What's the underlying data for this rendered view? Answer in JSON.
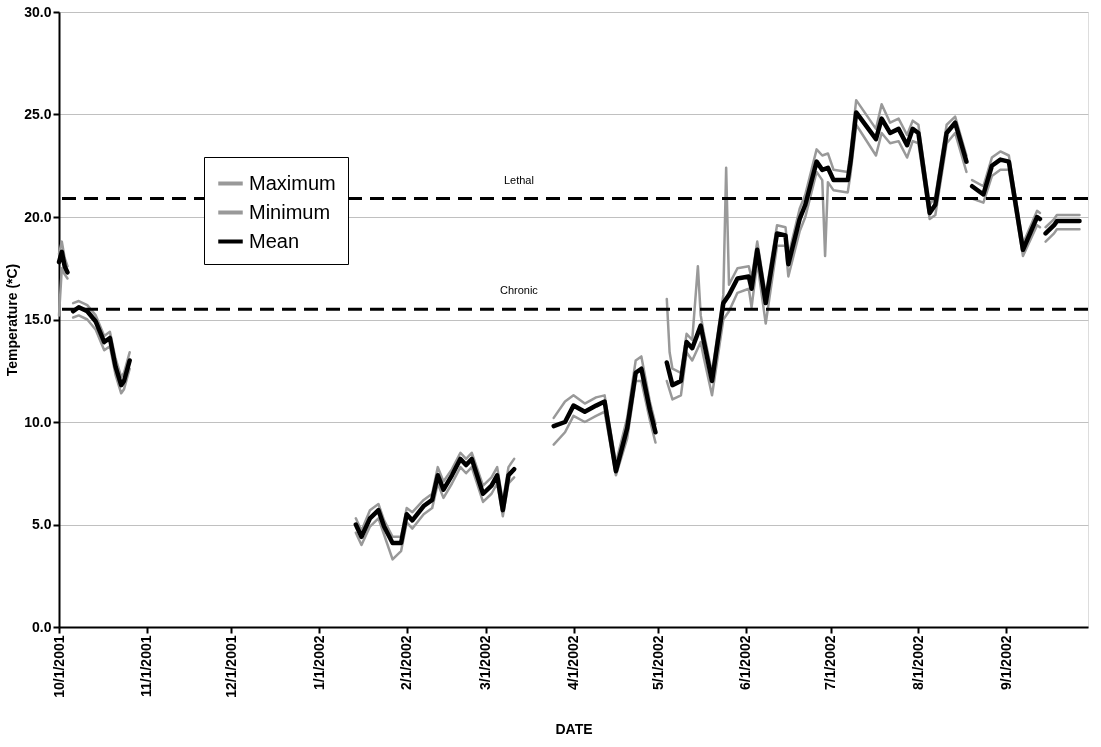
{
  "chart_data": {
    "type": "line",
    "xlabel": "DATE",
    "ylabel": "Temperature (*C)",
    "xlim": [
      "2001-10-01",
      "2002-09-30"
    ],
    "xticks": [
      {
        "value": "2001-10-01",
        "label": "10/1/2001"
      },
      {
        "value": "2001-11-01",
        "label": "11/1/2001"
      },
      {
        "value": "2001-12-01",
        "label": "12/1/2001"
      },
      {
        "value": "2002-01-01",
        "label": "1/1/2002"
      },
      {
        "value": "2002-02-01",
        "label": "2/1/2002"
      },
      {
        "value": "2002-03-01",
        "label": "3/1/2002"
      },
      {
        "value": "2002-04-01",
        "label": "4/1/2002"
      },
      {
        "value": "2002-05-01",
        "label": "5/1/2002"
      },
      {
        "value": "2002-06-01",
        "label": "6/1/2002"
      },
      {
        "value": "2002-07-01",
        "label": "7/1/2002"
      },
      {
        "value": "2002-08-01",
        "label": "8/1/2002"
      },
      {
        "value": "2002-09-01",
        "label": "9/1/2002"
      }
    ],
    "ylim": [
      0,
      30
    ],
    "yticks": [
      {
        "value": 0,
        "label": "0.0"
      },
      {
        "value": 5,
        "label": "5.0"
      },
      {
        "value": 10,
        "label": "10.0"
      },
      {
        "value": 15,
        "label": "15.0"
      },
      {
        "value": 20,
        "label": "20.0"
      },
      {
        "value": 25,
        "label": "25.0"
      },
      {
        "value": 30,
        "label": "30.0"
      }
    ],
    "grid": "y",
    "legend": "top left",
    "line_style": "solid",
    "marker": "none",
    "ref_lines": [
      {
        "axis": "y",
        "value": 20.9,
        "label": "Lethal",
        "color": "#000000",
        "line_style": "dashed"
      },
      {
        "axis": "y",
        "value": 15.5,
        "label": "Chronic",
        "color": "#000000",
        "line_style": "dashed"
      }
    ],
    "series": [
      {
        "name": "Maximum",
        "color": "#999999",
        "x": [
          "2001-10-01",
          "2001-10-02",
          "2001-10-03",
          "2001-10-04",
          "2001-10-05",
          "2001-10-06",
          "2001-10-08",
          "2001-10-11",
          "2001-10-14",
          "2001-10-17",
          "2001-10-19",
          "2001-10-21",
          "2001-10-23",
          "2001-10-24",
          "2001-10-26",
          "2001-11-15",
          "2002-01-14",
          "2002-01-16",
          "2002-01-19",
          "2002-01-22",
          "2002-01-24",
          "2002-01-27",
          "2002-01-30",
          "2002-02-01",
          "2002-02-03",
          "2002-02-07",
          "2002-02-10",
          "2002-02-12",
          "2002-02-14",
          "2002-02-17",
          "2002-02-20",
          "2002-02-22",
          "2002-02-24",
          "2002-02-28",
          "2002-03-03",
          "2002-03-05",
          "2002-03-07",
          "2002-03-09",
          "2002-03-11",
          "2002-03-18",
          "2002-03-25",
          "2002-03-29",
          "2002-04-01",
          "2002-04-05",
          "2002-04-09",
          "2002-04-12",
          "2002-04-16",
          "2002-04-20",
          "2002-04-23",
          "2002-04-25",
          "2002-04-28",
          "2002-04-30",
          "2002-05-02",
          "2002-05-04",
          "2002-05-05",
          "2002-05-06",
          "2002-05-09",
          "2002-05-11",
          "2002-05-13",
          "2002-05-15",
          "2002-05-16",
          "2002-05-17",
          "2002-05-20",
          "2002-05-24",
          "2002-05-25",
          "2002-05-26",
          "2002-05-29",
          "2002-06-02",
          "2002-06-03",
          "2002-06-05",
          "2002-06-08",
          "2002-06-12",
          "2002-06-15",
          "2002-06-16",
          "2002-06-20",
          "2002-06-22",
          "2002-06-26",
          "2002-06-28",
          "2002-06-30",
          "2002-07-02",
          "2002-07-07",
          "2002-07-08",
          "2002-07-10",
          "2002-07-17",
          "2002-07-19",
          "2002-07-22",
          "2002-07-25",
          "2002-07-28",
          "2002-07-30",
          "2002-08-01",
          "2002-08-05",
          "2002-08-07",
          "2002-08-11",
          "2002-08-14",
          "2002-08-18",
          "2002-08-19",
          "2002-08-20",
          "2002-08-24",
          "2002-08-27",
          "2002-08-30",
          "2002-09-02",
          "2002-09-07",
          "2002-09-12",
          "2002-09-13",
          "2002-09-14",
          "2002-09-15",
          "2002-09-18",
          "2002-09-19",
          "2002-09-27"
        ],
        "values": [
          18.2,
          18.8,
          18.0,
          17.6,
          null,
          15.8,
          15.9,
          15.7,
          15.2,
          14.2,
          14.4,
          13.1,
          12.2,
          12.4,
          13.4,
          null,
          5.3,
          4.7,
          5.7,
          6.0,
          5.2,
          4.4,
          4.4,
          5.8,
          5.6,
          6.2,
          6.5,
          7.8,
          7.1,
          7.7,
          8.5,
          8.2,
          8.5,
          6.9,
          7.3,
          7.8,
          6.1,
          7.8,
          8.2,
          null,
          10.2,
          11.0,
          11.3,
          10.9,
          11.2,
          11.3,
          8.0,
          10.2,
          13.0,
          13.2,
          11.0,
          9.9,
          null,
          16.0,
          13.4,
          12.6,
          12.4,
          14.3,
          14.0,
          17.6,
          15.2,
          14.4,
          12.4,
          16.2,
          22.4,
          16.7,
          17.5,
          17.6,
          17.0,
          18.8,
          16.2,
          19.6,
          19.5,
          18.1,
          20.4,
          21.1,
          23.3,
          23.0,
          23.1,
          22.3,
          22.2,
          23.2,
          25.7,
          24.3,
          25.5,
          24.6,
          24.8,
          24.0,
          24.7,
          24.5,
          20.6,
          21.0,
          24.5,
          24.9,
          23.0,
          null,
          21.8,
          21.5,
          22.9,
          23.2,
          23.0,
          18.7,
          20.3,
          20.2,
          null,
          19.5,
          19.9,
          20.1,
          20.1
        ]
      },
      {
        "name": "Minimum",
        "color": "#999999",
        "x": [
          "2001-10-01",
          "2001-10-02",
          "2001-10-03",
          "2001-10-04",
          "2001-10-05",
          "2001-10-06",
          "2001-10-08",
          "2001-10-11",
          "2001-10-14",
          "2001-10-17",
          "2001-10-19",
          "2001-10-21",
          "2001-10-23",
          "2001-10-24",
          "2001-10-26",
          "2001-11-15",
          "2002-01-14",
          "2002-01-16",
          "2002-01-19",
          "2002-01-22",
          "2002-01-24",
          "2002-01-27",
          "2002-01-30",
          "2002-02-01",
          "2002-02-03",
          "2002-02-07",
          "2002-02-10",
          "2002-02-12",
          "2002-02-14",
          "2002-02-17",
          "2002-02-20",
          "2002-02-22",
          "2002-02-24",
          "2002-02-28",
          "2002-03-03",
          "2002-03-05",
          "2002-03-07",
          "2002-03-09",
          "2002-03-11",
          "2002-03-18",
          "2002-03-25",
          "2002-03-29",
          "2002-04-01",
          "2002-04-05",
          "2002-04-09",
          "2002-04-12",
          "2002-04-16",
          "2002-04-20",
          "2002-04-23",
          "2002-04-25",
          "2002-04-28",
          "2002-04-30",
          "2002-05-02",
          "2002-05-04",
          "2002-05-06",
          "2002-05-09",
          "2002-05-11",
          "2002-05-13",
          "2002-05-16",
          "2002-05-17",
          "2002-05-20",
          "2002-05-24",
          "2002-05-26",
          "2002-05-29",
          "2002-06-02",
          "2002-06-03",
          "2002-06-05",
          "2002-06-08",
          "2002-06-12",
          "2002-06-15",
          "2002-06-16",
          "2002-06-20",
          "2002-06-22",
          "2002-06-26",
          "2002-06-28",
          "2002-06-29",
          "2002-06-30",
          "2002-07-02",
          "2002-07-07",
          "2002-07-08",
          "2002-07-10",
          "2002-07-17",
          "2002-07-19",
          "2002-07-22",
          "2002-07-25",
          "2002-07-28",
          "2002-07-30",
          "2002-08-01",
          "2002-08-05",
          "2002-08-07",
          "2002-08-11",
          "2002-08-14",
          "2002-08-18",
          "2002-08-19",
          "2002-08-20",
          "2002-08-24",
          "2002-08-27",
          "2002-08-30",
          "2002-09-02",
          "2002-09-07",
          "2002-09-12",
          "2002-09-13",
          "2002-09-14",
          "2002-09-15",
          "2002-09-18",
          "2002-09-19",
          "2002-09-27"
        ],
        "values": [
          15.2,
          17.5,
          17.2,
          17.0,
          null,
          15.1,
          15.2,
          15.0,
          14.5,
          13.5,
          13.7,
          12.3,
          11.4,
          11.6,
          12.6,
          null,
          4.6,
          4.0,
          4.9,
          5.3,
          4.5,
          3.3,
          3.7,
          5.1,
          4.8,
          5.5,
          5.8,
          7.0,
          6.3,
          7.0,
          7.8,
          7.5,
          7.8,
          6.1,
          6.5,
          7.0,
          5.4,
          7.0,
          7.3,
          null,
          8.9,
          9.5,
          10.3,
          10.0,
          10.3,
          10.5,
          7.4,
          9.2,
          12.0,
          12.0,
          10.1,
          9.0,
          null,
          12.0,
          11.1,
          11.3,
          13.4,
          13.0,
          13.9,
          13.2,
          11.3,
          15.0,
          15.4,
          16.3,
          16.5,
          15.6,
          17.8,
          14.8,
          18.6,
          18.6,
          17.1,
          19.3,
          20.0,
          22.2,
          21.8,
          18.1,
          21.7,
          21.3,
          21.2,
          22.1,
          24.5,
          23.0,
          24.1,
          23.6,
          23.7,
          22.9,
          23.7,
          23.6,
          19.9,
          20.1,
          23.6,
          24.1,
          22.2,
          null,
          20.9,
          20.7,
          22.0,
          22.3,
          22.3,
          18.1,
          19.6,
          19.5,
          null,
          18.8,
          19.2,
          19.4,
          19.4
        ]
      },
      {
        "name": "Mean",
        "color": "#000000",
        "x": [
          "2001-10-01",
          "2001-10-02",
          "2001-10-03",
          "2001-10-04",
          "2001-10-05",
          "2001-10-06",
          "2001-10-08",
          "2001-10-11",
          "2001-10-14",
          "2001-10-17",
          "2001-10-19",
          "2001-10-21",
          "2001-10-23",
          "2001-10-24",
          "2001-10-26",
          "2001-11-15",
          "2002-01-14",
          "2002-01-16",
          "2002-01-19",
          "2002-01-22",
          "2002-01-24",
          "2002-01-27",
          "2002-01-30",
          "2002-02-01",
          "2002-02-03",
          "2002-02-07",
          "2002-02-10",
          "2002-02-12",
          "2002-02-14",
          "2002-02-17",
          "2002-02-20",
          "2002-02-22",
          "2002-02-24",
          "2002-02-28",
          "2002-03-03",
          "2002-03-05",
          "2002-03-07",
          "2002-03-09",
          "2002-03-11",
          "2002-03-18",
          "2002-03-25",
          "2002-03-29",
          "2002-04-01",
          "2002-04-05",
          "2002-04-09",
          "2002-04-12",
          "2002-04-16",
          "2002-04-20",
          "2002-04-23",
          "2002-04-25",
          "2002-04-28",
          "2002-04-30",
          "2002-05-02",
          "2002-05-04",
          "2002-05-06",
          "2002-05-09",
          "2002-05-11",
          "2002-05-13",
          "2002-05-16",
          "2002-05-17",
          "2002-05-20",
          "2002-05-24",
          "2002-05-26",
          "2002-05-29",
          "2002-06-02",
          "2002-06-03",
          "2002-06-05",
          "2002-06-08",
          "2002-06-12",
          "2002-06-15",
          "2002-06-16",
          "2002-06-20",
          "2002-06-22",
          "2002-06-26",
          "2002-06-28",
          "2002-06-30",
          "2002-07-02",
          "2002-07-07",
          "2002-07-08",
          "2002-07-10",
          "2002-07-17",
          "2002-07-19",
          "2002-07-22",
          "2002-07-25",
          "2002-07-28",
          "2002-07-30",
          "2002-08-01",
          "2002-08-05",
          "2002-08-07",
          "2002-08-11",
          "2002-08-14",
          "2002-08-18",
          "2002-08-19",
          "2002-08-20",
          "2002-08-24",
          "2002-08-27",
          "2002-08-30",
          "2002-09-02",
          "2002-09-07",
          "2002-09-12",
          "2002-09-13",
          "2002-09-14",
          "2002-09-15",
          "2002-09-18",
          "2002-09-19",
          "2002-09-27"
        ],
        "values": [
          17.8,
          18.3,
          17.6,
          17.3,
          null,
          15.4,
          15.6,
          15.4,
          14.9,
          13.9,
          14.1,
          12.7,
          11.8,
          12.0,
          13.0,
          null,
          5.0,
          4.4,
          5.3,
          5.7,
          4.9,
          4.1,
          4.1,
          5.5,
          5.2,
          5.9,
          6.2,
          7.4,
          6.7,
          7.4,
          8.2,
          7.9,
          8.2,
          6.5,
          6.9,
          7.4,
          5.7,
          7.4,
          7.7,
          null,
          9.8,
          10.0,
          10.8,
          10.5,
          10.8,
          11.0,
          7.6,
          9.7,
          12.4,
          12.6,
          10.6,
          9.5,
          null,
          12.9,
          11.8,
          12.0,
          13.9,
          13.6,
          14.7,
          14.0,
          12.0,
          15.8,
          16.2,
          17.0,
          17.1,
          16.5,
          18.4,
          15.8,
          19.2,
          19.1,
          17.7,
          19.9,
          20.6,
          22.7,
          22.3,
          22.4,
          21.8,
          21.8,
          22.7,
          25.1,
          23.8,
          24.8,
          24.1,
          24.3,
          23.5,
          24.3,
          24.1,
          20.2,
          20.6,
          24.1,
          24.6,
          22.7,
          null,
          21.5,
          21.1,
          22.5,
          22.8,
          22.7,
          18.4,
          20.0,
          19.9,
          null,
          19.2,
          19.6,
          19.8,
          19.8
        ]
      }
    ]
  }
}
